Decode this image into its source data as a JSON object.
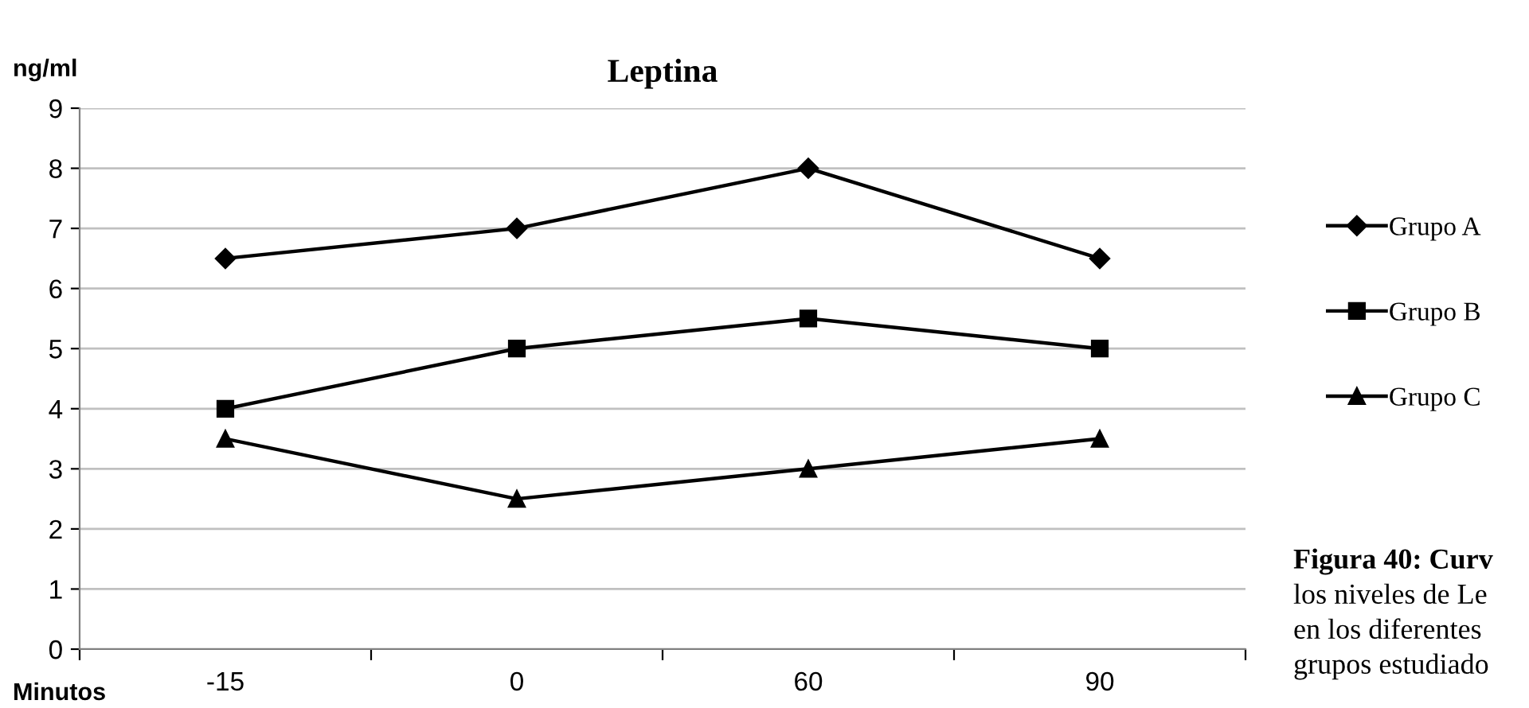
{
  "chart_data": {
    "type": "line",
    "title": "Leptina",
    "ylabel": "ng/ml",
    "xlabel": "Minutos",
    "categories": [
      "-15",
      "0",
      "60",
      "90"
    ],
    "series": [
      {
        "name": "Grupo A",
        "color": "#000000",
        "marker": "diamond",
        "values": [
          6.5,
          7,
          8,
          6.5
        ]
      },
      {
        "name": "Grupo B",
        "color": "#000000",
        "marker": "square",
        "values": [
          4,
          5,
          5.5,
          5
        ]
      },
      {
        "name": "Grupo C",
        "color": "#000000",
        "marker": "triangle",
        "values": [
          3.5,
          2.5,
          3,
          3.5
        ]
      }
    ],
    "ylim": [
      0,
      9
    ],
    "yticks": [
      0,
      1,
      2,
      3,
      4,
      5,
      6,
      7,
      8,
      9
    ],
    "grid": "y",
    "legend": "right",
    "line_style": "solid",
    "annotations": [
      "Figura 40: Curv",
      "los niveles de Le",
      "en los diferentes",
      "grupos estudiado"
    ]
  }
}
